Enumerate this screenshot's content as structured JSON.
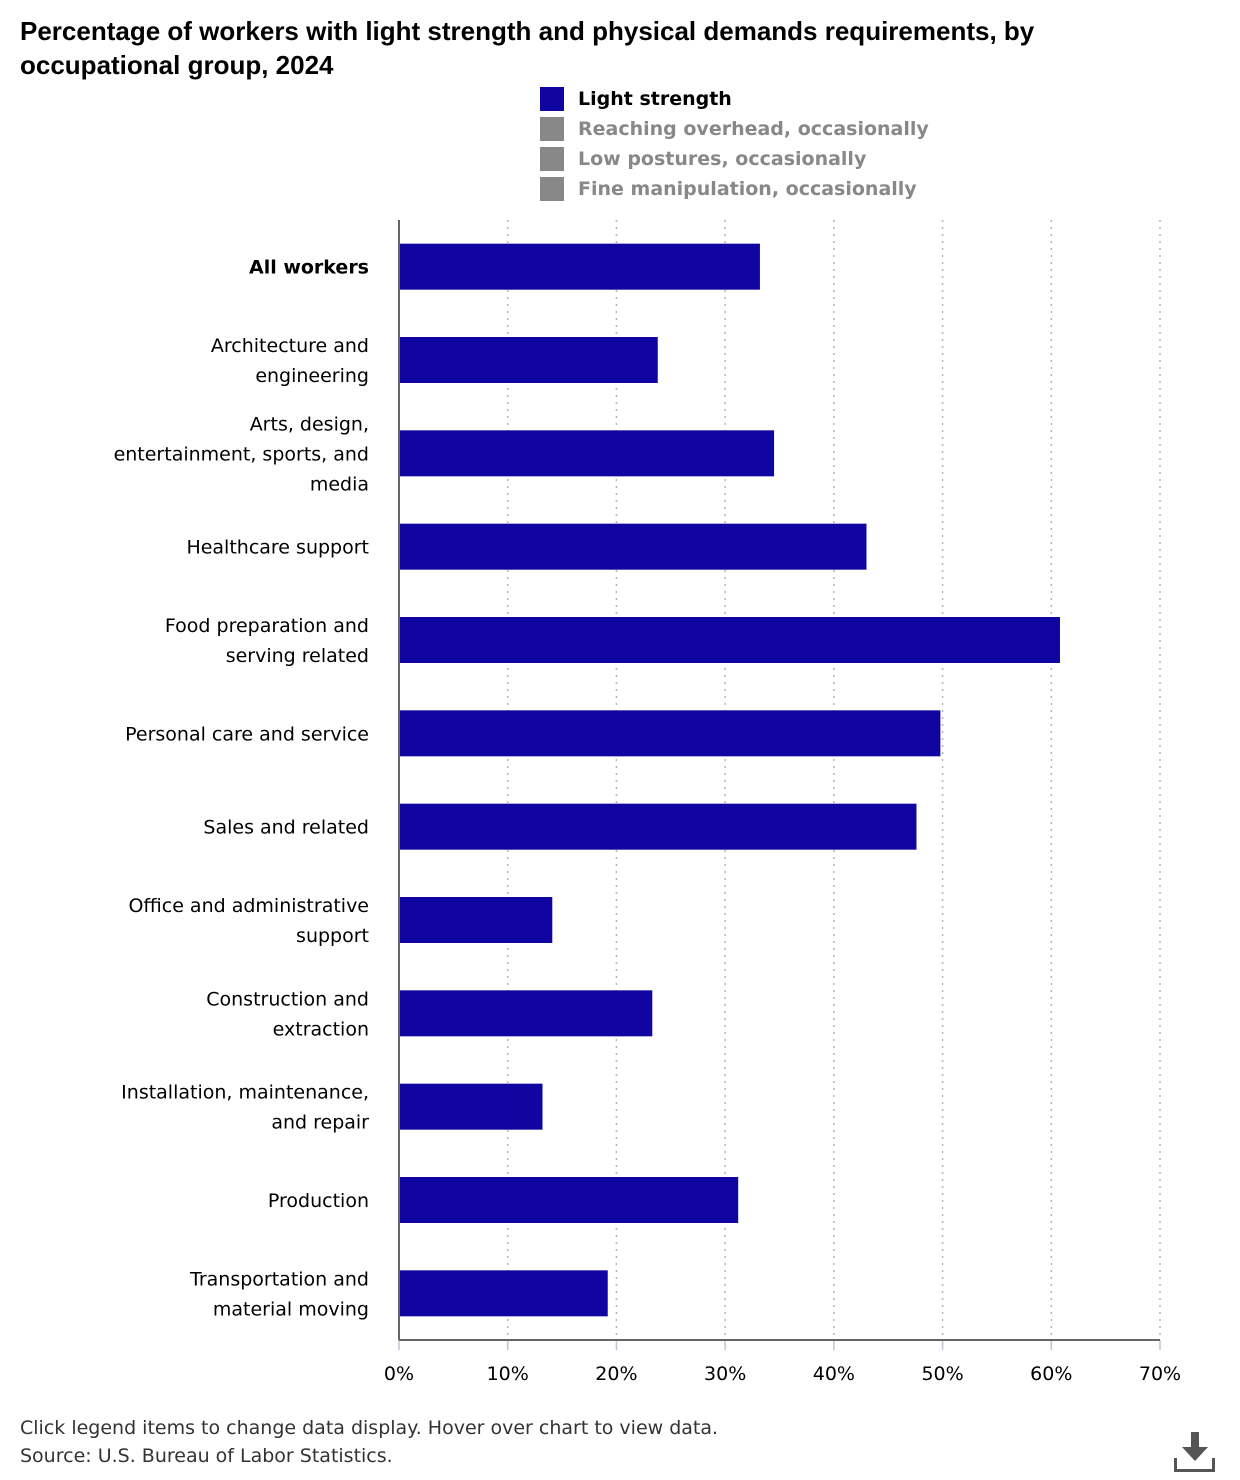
{
  "title": "Percentage of workers with light strength and physical demands requirements, by occupational group, 2024",
  "legend": [
    {
      "label": "Light strength",
      "color": "#1005a0",
      "active": true
    },
    {
      "label": "Reaching overhead, occasionally",
      "color": "#888888",
      "active": false
    },
    {
      "label": "Low postures, occasionally",
      "color": "#888888",
      "active": false
    },
    {
      "label": "Fine manipulation, occasionally",
      "color": "#888888",
      "active": false
    }
  ],
  "chart_data": {
    "type": "bar",
    "orientation": "horizontal",
    "categories": [
      "All workers",
      "Architecture and engineering",
      "Arts, design, entertainment, sports, and media",
      "Healthcare support",
      "Food preparation and serving related",
      "Personal care and service",
      "Sales and related",
      "Office and administrative support",
      "Construction and extraction",
      "Installation, maintenance, and repair",
      "Production",
      "Transportation and material moving"
    ],
    "series": [
      {
        "name": "Light strength",
        "color": "#1005a0",
        "values": [
          33.2,
          23.8,
          34.5,
          43.0,
          60.8,
          49.8,
          47.6,
          14.1,
          23.3,
          13.2,
          31.2,
          19.2
        ]
      }
    ],
    "xlim": [
      0,
      70
    ],
    "xticks": [
      "0%",
      "10%",
      "20%",
      "30%",
      "40%",
      "50%",
      "60%",
      "70%"
    ],
    "grid": "vertical dotted",
    "legend_position": "top"
  },
  "footer": {
    "line1": "Click legend items to change data display. Hover over chart to view data.",
    "line2": "Source: U.S. Bureau of Labor Statistics."
  },
  "icons": {
    "download": "download-icon"
  }
}
